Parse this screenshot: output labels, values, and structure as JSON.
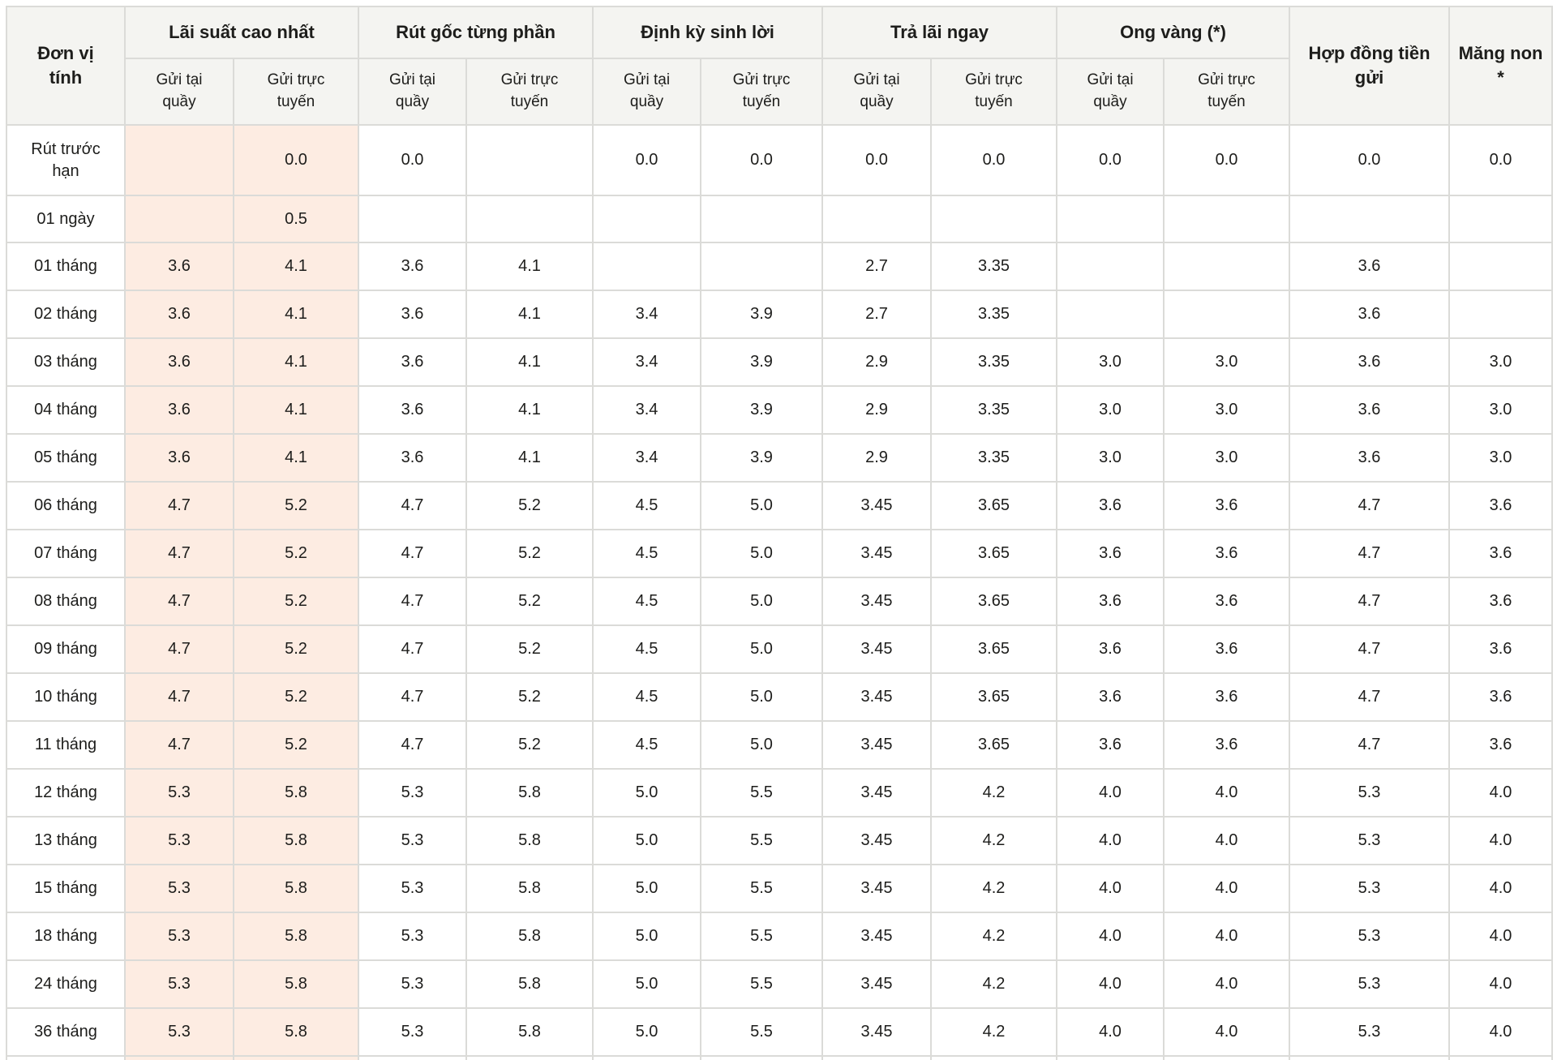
{
  "table": {
    "unit_header": "Đơn vị\ntính",
    "groups": [
      "Lãi suất cao nhất",
      "Rút gốc từng phần",
      "Định kỳ sinh lời",
      "Trả lãi ngay",
      "Ong vàng (*)"
    ],
    "sub_headers": [
      "Gửi tại\nquầy",
      "Gửi trực\ntuyến"
    ],
    "contract_header": "Hợp đồng tiền\ngửi",
    "mang_non_header": "Măng non\n*",
    "rows": [
      {
        "label": "Rút trước\nhạn",
        "values": [
          "",
          "0.0",
          "0.0",
          "",
          "0.0",
          "0.0",
          "0.0",
          "0.0",
          "0.0",
          "0.0",
          "0.0",
          "0.0"
        ]
      },
      {
        "label": "01 ngày",
        "values": [
          "",
          "0.5",
          "",
          "",
          "",
          "",
          "",
          "",
          "",
          "",
          "",
          ""
        ]
      },
      {
        "label": "01 tháng",
        "values": [
          "3.6",
          "4.1",
          "3.6",
          "4.1",
          "",
          "",
          "2.7",
          "3.35",
          "",
          "",
          "3.6",
          ""
        ]
      },
      {
        "label": "02 tháng",
        "values": [
          "3.6",
          "4.1",
          "3.6",
          "4.1",
          "3.4",
          "3.9",
          "2.7",
          "3.35",
          "",
          "",
          "3.6",
          ""
        ]
      },
      {
        "label": "03 tháng",
        "values": [
          "3.6",
          "4.1",
          "3.6",
          "4.1",
          "3.4",
          "3.9",
          "2.9",
          "3.35",
          "3.0",
          "3.0",
          "3.6",
          "3.0"
        ]
      },
      {
        "label": "04 tháng",
        "values": [
          "3.6",
          "4.1",
          "3.6",
          "4.1",
          "3.4",
          "3.9",
          "2.9",
          "3.35",
          "3.0",
          "3.0",
          "3.6",
          "3.0"
        ]
      },
      {
        "label": "05 tháng",
        "values": [
          "3.6",
          "4.1",
          "3.6",
          "4.1",
          "3.4",
          "3.9",
          "2.9",
          "3.35",
          "3.0",
          "3.0",
          "3.6",
          "3.0"
        ]
      },
      {
        "label": "06 tháng",
        "values": [
          "4.7",
          "5.2",
          "4.7",
          "5.2",
          "4.5",
          "5.0",
          "3.45",
          "3.65",
          "3.6",
          "3.6",
          "4.7",
          "3.6"
        ]
      },
      {
        "label": "07 tháng",
        "values": [
          "4.7",
          "5.2",
          "4.7",
          "5.2",
          "4.5",
          "5.0",
          "3.45",
          "3.65",
          "3.6",
          "3.6",
          "4.7",
          "3.6"
        ]
      },
      {
        "label": "08 tháng",
        "values": [
          "4.7",
          "5.2",
          "4.7",
          "5.2",
          "4.5",
          "5.0",
          "3.45",
          "3.65",
          "3.6",
          "3.6",
          "4.7",
          "3.6"
        ]
      },
      {
        "label": "09 tháng",
        "values": [
          "4.7",
          "5.2",
          "4.7",
          "5.2",
          "4.5",
          "5.0",
          "3.45",
          "3.65",
          "3.6",
          "3.6",
          "4.7",
          "3.6"
        ]
      },
      {
        "label": "10 tháng",
        "values": [
          "4.7",
          "5.2",
          "4.7",
          "5.2",
          "4.5",
          "5.0",
          "3.45",
          "3.65",
          "3.6",
          "3.6",
          "4.7",
          "3.6"
        ]
      },
      {
        "label": "11 tháng",
        "values": [
          "4.7",
          "5.2",
          "4.7",
          "5.2",
          "4.5",
          "5.0",
          "3.45",
          "3.65",
          "3.6",
          "3.6",
          "4.7",
          "3.6"
        ]
      },
      {
        "label": "12 tháng",
        "values": [
          "5.3",
          "5.8",
          "5.3",
          "5.8",
          "5.0",
          "5.5",
          "3.45",
          "4.2",
          "4.0",
          "4.0",
          "5.3",
          "4.0"
        ]
      },
      {
        "label": "13 tháng",
        "values": [
          "5.3",
          "5.8",
          "5.3",
          "5.8",
          "5.0",
          "5.5",
          "3.45",
          "4.2",
          "4.0",
          "4.0",
          "5.3",
          "4.0"
        ]
      },
      {
        "label": "15 tháng",
        "values": [
          "5.3",
          "5.8",
          "5.3",
          "5.8",
          "5.0",
          "5.5",
          "3.45",
          "4.2",
          "4.0",
          "4.0",
          "5.3",
          "4.0"
        ]
      },
      {
        "label": "18 tháng",
        "values": [
          "5.3",
          "5.8",
          "5.3",
          "5.8",
          "5.0",
          "5.5",
          "3.45",
          "4.2",
          "4.0",
          "4.0",
          "5.3",
          "4.0"
        ]
      },
      {
        "label": "24 tháng",
        "values": [
          "5.3",
          "5.8",
          "5.3",
          "5.8",
          "5.0",
          "5.5",
          "3.45",
          "4.2",
          "4.0",
          "4.0",
          "5.3",
          "4.0"
        ]
      },
      {
        "label": "36 tháng",
        "values": [
          "5.3",
          "5.8",
          "5.3",
          "5.8",
          "5.0",
          "5.5",
          "3.45",
          "4.2",
          "4.0",
          "4.0",
          "5.3",
          "4.0"
        ]
      },
      {
        "label": "",
        "values": [
          "",
          "",
          "",
          "",
          "",
          "",
          "",
          "",
          "",
          "",
          "",
          ""
        ]
      }
    ]
  },
  "colors": {
    "highlight": "#fdece2",
    "header_bg": "#f4f4f1",
    "border": "#dbdbd8",
    "text": "#1d1d1b"
  }
}
